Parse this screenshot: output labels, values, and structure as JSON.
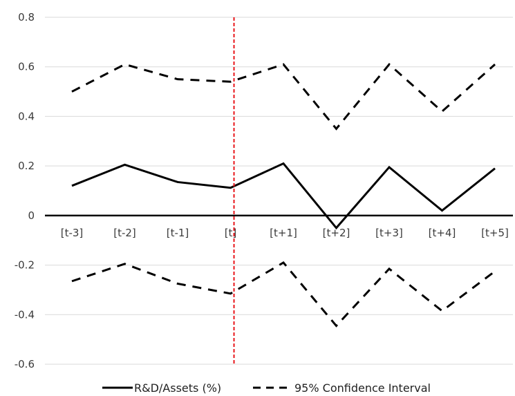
{
  "chart_data": {
    "type": "line",
    "categories": [
      "[t-3]",
      "[t-2]",
      "[t-1]",
      "[t]",
      "[t+1]",
      "[t+2]",
      "[t+3]",
      "[t+4]",
      "[t+5]"
    ],
    "series": [
      {
        "name": "R&D/Assets (%)",
        "style": "solid",
        "values": [
          0.12,
          0.205,
          0.135,
          0.112,
          0.21,
          -0.05,
          0.195,
          0.02,
          0.19
        ]
      },
      {
        "name": "95% Confidence Interval",
        "style": "dashed",
        "values": [
          0.5,
          0.61,
          0.55,
          0.54,
          0.61,
          0.35,
          0.61,
          0.42,
          0.61
        ]
      },
      {
        "name": "",
        "style": "dashed",
        "values": [
          -0.265,
          -0.195,
          -0.275,
          -0.315,
          -0.19,
          -0.445,
          -0.215,
          -0.385,
          -0.225
        ]
      }
    ],
    "ylim": [
      -0.6,
      0.8
    ],
    "yticks": [
      0.8,
      0.6,
      0.4,
      0.2,
      0,
      -0.2,
      -0.4,
      -0.6
    ],
    "ytick_labels": [
      "0.8",
      "0.6",
      "0.4",
      "0.2",
      "0",
      "-0.2",
      "-0.4",
      "-0.6"
    ],
    "grid": true,
    "event_marker": {
      "category": "[t]",
      "color": "#e8141a",
      "style": "dashed"
    },
    "legend": {
      "placement": "bottom",
      "items": [
        "R&D/Assets (%)",
        "95% Confidence Interval"
      ]
    },
    "colors": {
      "series": "#000000",
      "grid": "#d9d9d9",
      "zero_axis": "#000000"
    }
  }
}
